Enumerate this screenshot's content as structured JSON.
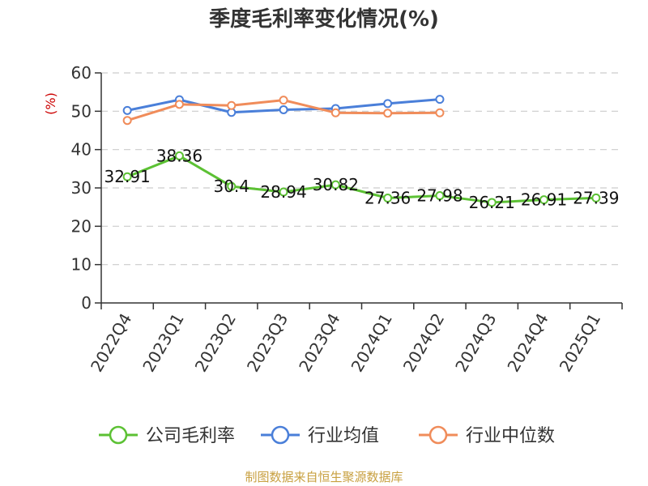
{
  "chart_data": {
    "type": "line",
    "title": "季度毛利率变化情况(%)",
    "ylabel": "(%)",
    "xlabel": "",
    "categories": [
      "2022Q4",
      "2023Q1",
      "2023Q2",
      "2023Q3",
      "2023Q4",
      "2024Q1",
      "2024Q2",
      "2024Q3",
      "2024Q4",
      "2025Q1"
    ],
    "ylim": [
      0,
      60
    ],
    "yticks": [
      0,
      10,
      20,
      30,
      40,
      50,
      60
    ],
    "grid": true,
    "legend_position": "bottom",
    "series": [
      {
        "name": "公司毛利率",
        "color": "#5cc134",
        "values": [
          32.91,
          38.36,
          30.4,
          28.94,
          30.82,
          27.36,
          27.98,
          26.21,
          26.91,
          27.39
        ],
        "labels": [
          "32.91",
          "38.36",
          "30.4",
          "28.94",
          "30.82",
          "27.36",
          "27.98",
          "26.21",
          "26.91",
          "27.39"
        ]
      },
      {
        "name": "行业均值",
        "color": "#4a7fd9",
        "values": [
          50.2,
          53.0,
          49.7,
          50.4,
          50.7,
          52.0,
          53.1,
          null,
          null,
          null
        ]
      },
      {
        "name": "行业中位数",
        "color": "#f08c5a",
        "values": [
          47.6,
          51.8,
          51.5,
          52.9,
          49.6,
          49.5,
          49.6,
          null,
          null,
          null
        ]
      }
    ]
  },
  "source": "制图数据来自恒生聚源数据库"
}
